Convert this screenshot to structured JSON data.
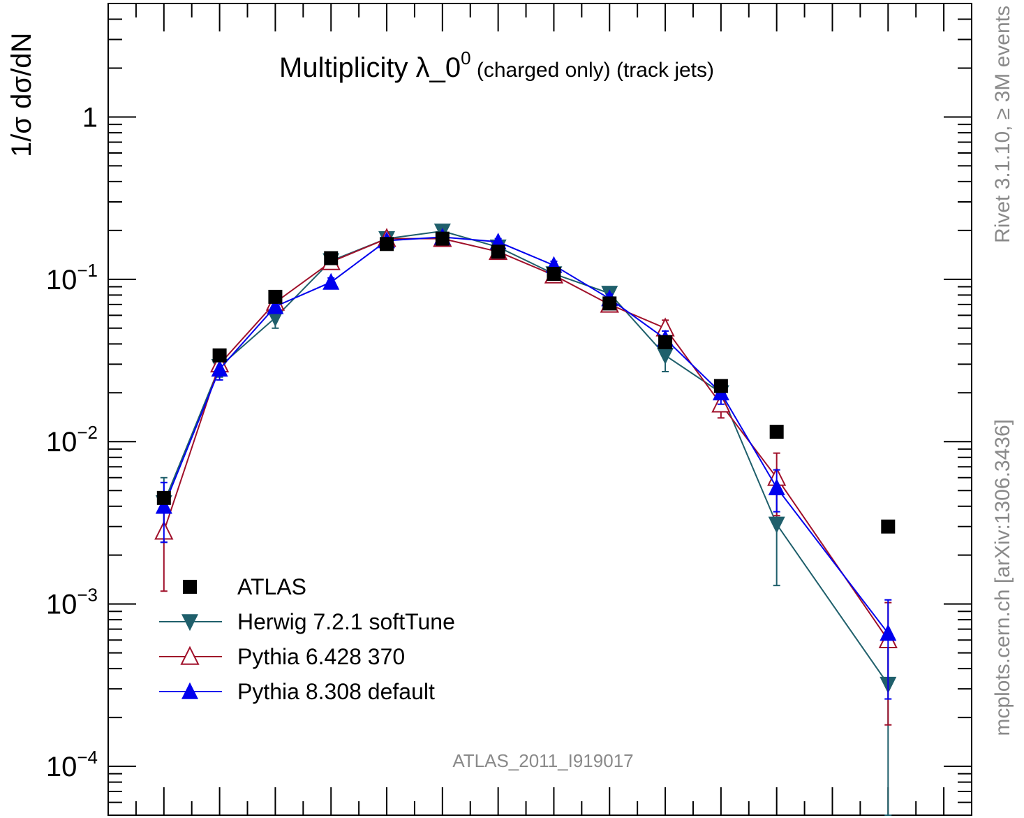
{
  "chart_data": {
    "type": "line",
    "title": "Multiplicity λ_0",
    "title_superscript": "0",
    "title_suffix": " (charged only) (track jets)",
    "ylabel": "1/σ dσ/dN",
    "y_scale": "log",
    "ylim": [
      5e-05,
      5
    ],
    "y_ticks": [
      {
        "value": 1,
        "base": "1",
        "exp": ""
      },
      {
        "value": 0.1,
        "base": "10",
        "exp": "−1"
      },
      {
        "value": 0.01,
        "base": "10",
        "exp": "−2"
      },
      {
        "value": 0.001,
        "base": "10",
        "exp": "−3"
      },
      {
        "value": 0.0001,
        "base": "10",
        "exp": "−4"
      }
    ],
    "xlim": [
      0,
      15.5
    ],
    "x_tick_labels": "none",
    "grid": false,
    "legend_position": "bottom-left",
    "side_text_top": "Rivet 3.1.10,  ≥ 3M events",
    "side_text_bottom": "mcplots.cern.ch [arXiv:1306.3436]",
    "watermark": "ATLAS_2011_I919017",
    "series": [
      {
        "name": "ATLAS",
        "color": "#000000",
        "marker": "square",
        "line": false,
        "x": [
          1,
          2,
          3,
          4,
          5,
          6,
          7,
          8,
          9,
          10,
          11,
          12,
          14
        ],
        "y": [
          0.0045,
          0.034,
          0.078,
          0.135,
          0.165,
          0.178,
          0.148,
          0.108,
          0.071,
          0.041,
          0.022,
          0.0115,
          0.003
        ],
        "err": [
          0,
          0,
          0,
          0,
          0,
          0,
          0,
          0,
          0,
          0,
          0,
          0,
          0
        ]
      },
      {
        "name": "Herwig 7.2.1 softTune",
        "color": "#1f5f6b",
        "marker": "triangle-down",
        "line": true,
        "x": [
          1,
          2,
          3,
          4,
          5,
          6,
          7,
          8,
          9,
          10,
          11,
          12,
          14
        ],
        "y": [
          0.0042,
          0.029,
          0.058,
          0.13,
          0.178,
          0.198,
          0.158,
          0.108,
          0.082,
          0.034,
          0.02,
          0.0031,
          0.00032
        ],
        "err": [
          0.0018,
          0.004,
          0.008,
          0.008,
          0.008,
          0.008,
          0.008,
          0.008,
          0.006,
          0.007,
          0.0035,
          0.0018,
          0.00028
        ]
      },
      {
        "name": "Pythia 6.428 370",
        "color": "#a0102a",
        "marker": "triangle-open",
        "line": true,
        "x": [
          1,
          2,
          3,
          4,
          5,
          6,
          7,
          8,
          9,
          10,
          11,
          12,
          14
        ],
        "y": [
          0.0028,
          0.03,
          0.072,
          0.128,
          0.178,
          0.178,
          0.148,
          0.106,
          0.07,
          0.05,
          0.017,
          0.006,
          0.0006
        ],
        "err": [
          0.0016,
          0.004,
          0.006,
          0.008,
          0.008,
          0.008,
          0.008,
          0.007,
          0.005,
          0.006,
          0.003,
          0.0025,
          0.00042
        ]
      },
      {
        "name": "Pythia 8.308 default",
        "color": "#0000ee",
        "marker": "triangle-up",
        "line": true,
        "x": [
          1,
          2,
          3,
          4,
          5,
          6,
          7,
          8,
          9,
          10,
          11,
          12,
          14
        ],
        "y": [
          0.004,
          0.028,
          0.068,
          0.096,
          0.173,
          0.182,
          0.17,
          0.122,
          0.076,
          0.043,
          0.02,
          0.0052,
          0.00066
        ],
        "err": [
          0.0016,
          0.004,
          0.006,
          0.006,
          0.008,
          0.008,
          0.008,
          0.007,
          0.005,
          0.005,
          0.003,
          0.0015,
          0.0004
        ]
      }
    ]
  }
}
